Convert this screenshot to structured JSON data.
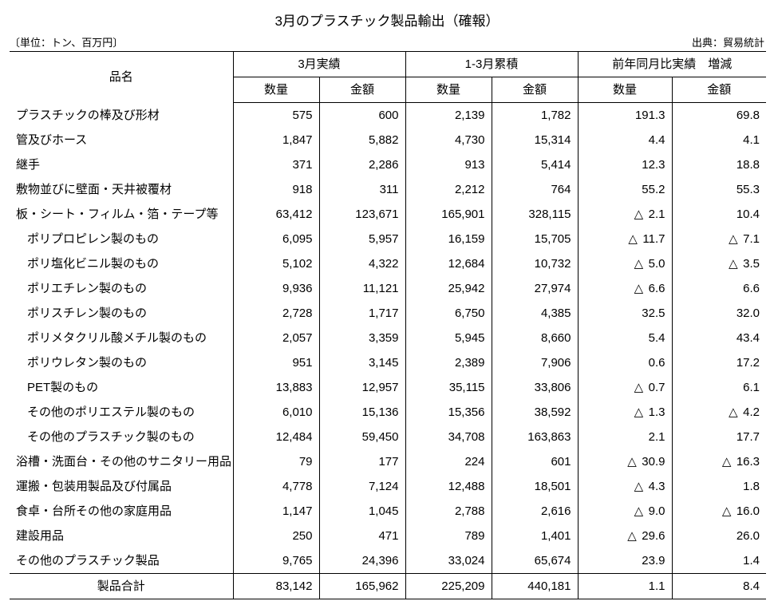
{
  "title": "3月のプラスチック製品輸出（確報）",
  "unit_label": "〔単位：トン、百万円〕",
  "source_label": "出典：貿易統計",
  "header": {
    "name": "品名",
    "group1": "3月実績",
    "group2": "1-3月累積",
    "group3": "前年同月比実績　増減",
    "qty": "数量",
    "amt": "金額"
  },
  "neg_mark": "△",
  "rows": [
    {
      "name": "プラスチックの棒及び形材",
      "indent": 0,
      "v": [
        "575",
        "600",
        "2,139",
        "1,782",
        "191.3",
        "69.8"
      ],
      "neg": [
        0,
        0,
        0,
        0,
        0,
        0
      ]
    },
    {
      "name": "管及びホース",
      "indent": 0,
      "v": [
        "1,847",
        "5,882",
        "4,730",
        "15,314",
        "4.4",
        "4.1"
      ],
      "neg": [
        0,
        0,
        0,
        0,
        0,
        0
      ]
    },
    {
      "name": "継手",
      "indent": 0,
      "v": [
        "371",
        "2,286",
        "913",
        "5,414",
        "12.3",
        "18.8"
      ],
      "neg": [
        0,
        0,
        0,
        0,
        0,
        0
      ]
    },
    {
      "name": "敷物並びに壁面・天井被覆材",
      "indent": 0,
      "v": [
        "918",
        "311",
        "2,212",
        "764",
        "55.2",
        "55.3"
      ],
      "neg": [
        0,
        0,
        0,
        0,
        0,
        0
      ]
    },
    {
      "name": "板・シート・フィルム・箔・テープ等",
      "indent": 0,
      "v": [
        "63,412",
        "123,671",
        "165,901",
        "328,115",
        "2.1",
        "10.4"
      ],
      "neg": [
        0,
        0,
        0,
        0,
        1,
        0
      ]
    },
    {
      "name": "ポリプロピレン製のもの",
      "indent": 1,
      "v": [
        "6,095",
        "5,957",
        "16,159",
        "15,705",
        "11.7",
        "7.1"
      ],
      "neg": [
        0,
        0,
        0,
        0,
        1,
        1
      ]
    },
    {
      "name": "ポリ塩化ビニル製のもの",
      "indent": 1,
      "v": [
        "5,102",
        "4,322",
        "12,684",
        "10,732",
        "5.0",
        "3.5"
      ],
      "neg": [
        0,
        0,
        0,
        0,
        1,
        1
      ]
    },
    {
      "name": "ポリエチレン製のもの",
      "indent": 1,
      "v": [
        "9,936",
        "11,121",
        "25,942",
        "27,974",
        "6.6",
        "6.6"
      ],
      "neg": [
        0,
        0,
        0,
        0,
        1,
        0
      ]
    },
    {
      "name": "ポリスチレン製のもの",
      "indent": 1,
      "v": [
        "2,728",
        "1,717",
        "6,750",
        "4,385",
        "32.5",
        "32.0"
      ],
      "neg": [
        0,
        0,
        0,
        0,
        0,
        0
      ]
    },
    {
      "name": "ポリメタクリル酸メチル製のもの",
      "indent": 1,
      "v": [
        "2,057",
        "3,359",
        "5,945",
        "8,660",
        "5.4",
        "43.4"
      ],
      "neg": [
        0,
        0,
        0,
        0,
        0,
        0
      ]
    },
    {
      "name": "ポリウレタン製のもの",
      "indent": 1,
      "v": [
        "951",
        "3,145",
        "2,389",
        "7,906",
        "0.6",
        "17.2"
      ],
      "neg": [
        0,
        0,
        0,
        0,
        0,
        0
      ]
    },
    {
      "name": "PET製のもの",
      "indent": 1,
      "v": [
        "13,883",
        "12,957",
        "35,115",
        "33,806",
        "0.7",
        "6.1"
      ],
      "neg": [
        0,
        0,
        0,
        0,
        1,
        0
      ]
    },
    {
      "name": "その他のポリエステル製のもの",
      "indent": 1,
      "v": [
        "6,010",
        "15,136",
        "15,356",
        "38,592",
        "1.3",
        "4.2"
      ],
      "neg": [
        0,
        0,
        0,
        0,
        1,
        1
      ]
    },
    {
      "name": "その他のプラスチック製のもの",
      "indent": 1,
      "v": [
        "12,484",
        "59,450",
        "34,708",
        "163,863",
        "2.1",
        "17.7"
      ],
      "neg": [
        0,
        0,
        0,
        0,
        0,
        0
      ]
    },
    {
      "name": "浴槽・洗面台・その他のサニタリー用品",
      "indent": 0,
      "v": [
        "79",
        "177",
        "224",
        "601",
        "30.9",
        "16.3"
      ],
      "neg": [
        0,
        0,
        0,
        0,
        1,
        1
      ]
    },
    {
      "name": "運搬・包装用製品及び付属品",
      "indent": 0,
      "v": [
        "4,778",
        "7,124",
        "12,488",
        "18,501",
        "4.3",
        "1.8"
      ],
      "neg": [
        0,
        0,
        0,
        0,
        1,
        0
      ]
    },
    {
      "name": "食卓・台所その他の家庭用品",
      "indent": 0,
      "v": [
        "1,147",
        "1,045",
        "2,788",
        "2,616",
        "9.0",
        "16.0"
      ],
      "neg": [
        0,
        0,
        0,
        0,
        1,
        1
      ]
    },
    {
      "name": "建設用品",
      "indent": 0,
      "v": [
        "250",
        "471",
        "789",
        "1,401",
        "29.6",
        "26.0"
      ],
      "neg": [
        0,
        0,
        0,
        0,
        1,
        0
      ]
    },
    {
      "name": "その他のプラスチック製品",
      "indent": 0,
      "v": [
        "9,765",
        "24,396",
        "33,024",
        "65,674",
        "23.9",
        "1.4"
      ],
      "neg": [
        0,
        0,
        0,
        0,
        0,
        0
      ]
    }
  ],
  "total": {
    "name": "製品合計",
    "v": [
      "83,142",
      "165,962",
      "225,209",
      "440,181",
      "1.1",
      "8.4"
    ],
    "neg": [
      0,
      0,
      0,
      0,
      0,
      0
    ]
  }
}
